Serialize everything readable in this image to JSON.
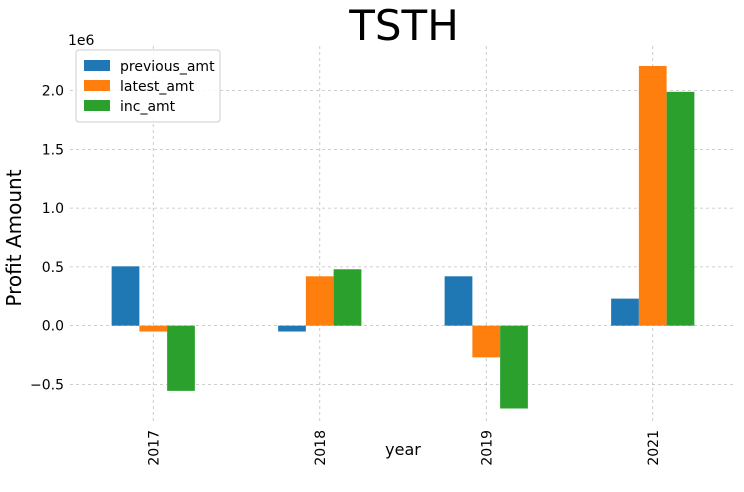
{
  "chart_data": {
    "type": "bar",
    "title": "TSTH",
    "xlabel": "year",
    "ylabel": "Profit Amount",
    "offset_label": "1e6",
    "categories": [
      "2017",
      "2018",
      "2019",
      "2021"
    ],
    "series": [
      {
        "name": "previous_amt",
        "color": "#1f77b4",
        "values": [
          505000,
          -50000,
          420000,
          230000
        ]
      },
      {
        "name": "latest_amt",
        "color": "#ff7f0e",
        "values": [
          -50000,
          420000,
          -270000,
          2210000
        ]
      },
      {
        "name": "inc_amt",
        "color": "#2ca02c",
        "values": [
          -555000,
          480000,
          -705000,
          1990000
        ]
      }
    ],
    "ylim": [
      -0.82,
      2.38
    ],
    "yscale_factor": 1000000,
    "yticks": [
      -0.5,
      0.0,
      0.5,
      1.0,
      1.5,
      2.0
    ],
    "ytick_labels": [
      "−0.5",
      "0.0",
      "0.5",
      "1.0",
      "1.5",
      "2.0"
    ],
    "grid": true,
    "legend_position": "top-left"
  }
}
